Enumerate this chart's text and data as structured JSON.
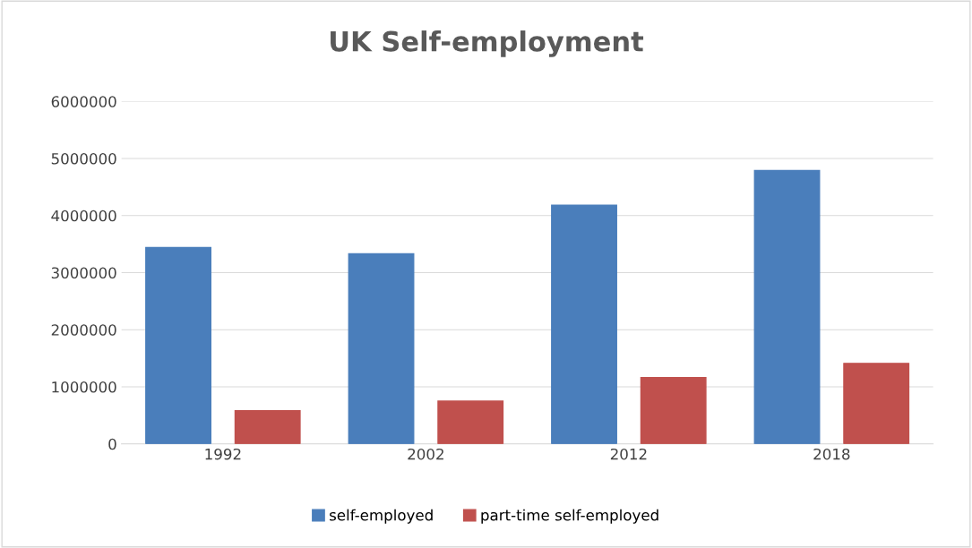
{
  "chart_data": {
    "type": "bar",
    "title": "UK Self-employment",
    "categories": [
      "1992",
      "2002",
      "2012",
      "2018"
    ],
    "series": [
      {
        "name": "self-employed",
        "color": "#4a7ebb",
        "values": [
          3440000,
          3330000,
          4180000,
          4790000
        ]
      },
      {
        "name": "part-time self-employed",
        "color": "#c0504d",
        "values": [
          580000,
          750000,
          1160000,
          1410000
        ]
      }
    ],
    "ylim": [
      0,
      6000000
    ],
    "yticks": [
      0,
      1000000,
      2000000,
      3000000,
      4000000,
      5000000,
      6000000
    ],
    "grid": "y",
    "legend": "bottom"
  }
}
